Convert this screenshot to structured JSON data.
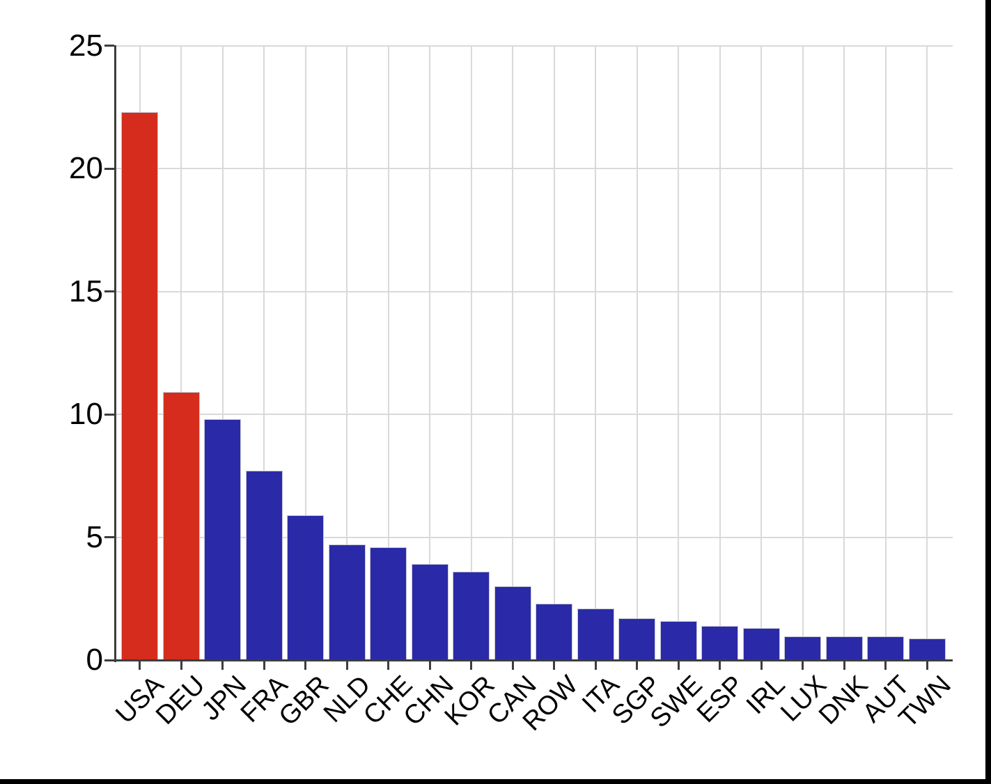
{
  "chart_data": {
    "type": "bar",
    "title": "",
    "xlabel": "",
    "ylabel": "",
    "categories": [
      "USA",
      "DEU",
      "JPN",
      "FRA",
      "GBR",
      "NLD",
      "CHE",
      "CHN",
      "KOR",
      "CAN",
      "ROW",
      "ITA",
      "SGP",
      "SWE",
      "ESP",
      "IRL",
      "LUX",
      "DNK",
      "AUT",
      "TWN"
    ],
    "values": [
      22.3,
      10.9,
      9.8,
      7.7,
      5.9,
      4.7,
      4.6,
      3.9,
      3.6,
      3.0,
      2.3,
      2.1,
      1.7,
      1.6,
      1.4,
      1.3,
      0.96,
      0.96,
      0.96,
      0.88
    ],
    "highlighted_categories": [
      "USA",
      "DEU"
    ],
    "ylim": [
      0,
      25
    ],
    "yticks": [
      0,
      5,
      10,
      15,
      20,
      25
    ],
    "grid": true,
    "legend_position": "none",
    "colors": {
      "highlight_bar": "#d52c1e",
      "default_bar": "#2a2aa8",
      "gridline": "#d9d9d9",
      "axis": "#3d3d3d",
      "tick_label": "#000000",
      "background": "#ffffff",
      "screen_edge": "#000000"
    }
  }
}
